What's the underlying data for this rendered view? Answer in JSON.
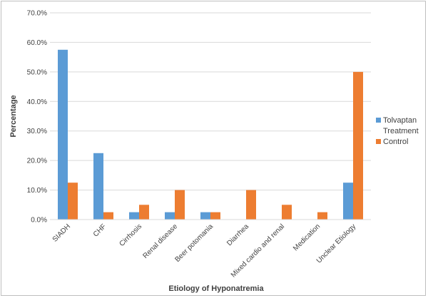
{
  "chart_data": {
    "type": "bar",
    "title": "",
    "xlabel": "Etiology of Hyponatremia",
    "ylabel": "Percentage",
    "ylim": [
      0,
      70
    ],
    "yticks": [
      "0.0%",
      "10.0%",
      "20.0%",
      "30.0%",
      "40.0%",
      "50.0%",
      "60.0%",
      "70.0%"
    ],
    "ytick_values": [
      0,
      10,
      20,
      30,
      40,
      50,
      60,
      70
    ],
    "grid": true,
    "legend_position": "right",
    "categories": [
      "SIADH",
      "CHF",
      "Cirrhosis",
      "Renal disease",
      "Beer potomania",
      "Diarrhea",
      "Mixed cardio and renal",
      "Medication",
      "Unclear Etiology"
    ],
    "series": [
      {
        "name": "Tolvaptan Treatment",
        "legend_lines": [
          "Tolvaptan",
          "Treatment"
        ],
        "color": "#5b9bd5",
        "values": [
          57.5,
          22.5,
          2.5,
          2.5,
          2.5,
          0,
          0,
          0,
          12.5
        ]
      },
      {
        "name": "Control",
        "legend_lines": [
          "Control"
        ],
        "color": "#ed7d31",
        "values": [
          12.5,
          2.5,
          5,
          10,
          2.5,
          10,
          5,
          2.5,
          50
        ]
      }
    ]
  }
}
